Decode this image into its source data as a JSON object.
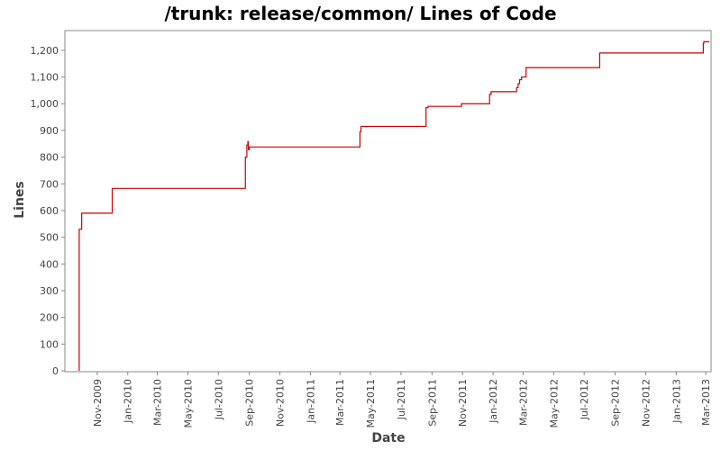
{
  "chart_data": {
    "type": "line",
    "title": "/trunk: release/common/ Lines of Code",
    "xlabel": "Date",
    "ylabel": "Lines",
    "ylim": [
      0,
      1240
    ],
    "xlim": [
      "2009-09-01",
      "2013-03-08"
    ],
    "y_ticks": [
      {
        "value": 0,
        "label": "0"
      },
      {
        "value": 100,
        "label": "100"
      },
      {
        "value": 200,
        "label": "200"
      },
      {
        "value": 300,
        "label": "300"
      },
      {
        "value": 400,
        "label": "400"
      },
      {
        "value": 500,
        "label": "500"
      },
      {
        "value": 600,
        "label": "600"
      },
      {
        "value": 700,
        "label": "700"
      },
      {
        "value": 800,
        "label": "800"
      },
      {
        "value": 900,
        "label": "900"
      },
      {
        "value": 1000,
        "label": "1,000"
      },
      {
        "value": 1100,
        "label": "1,100"
      },
      {
        "value": 1200,
        "label": "1,200"
      }
    ],
    "x_ticks": [
      {
        "date": "2009-11-01",
        "label": "Nov-2009"
      },
      {
        "date": "2010-01-01",
        "label": "Jan-2010"
      },
      {
        "date": "2010-03-01",
        "label": "Mar-2010"
      },
      {
        "date": "2010-05-01",
        "label": "May-2010"
      },
      {
        "date": "2010-07-01",
        "label": "Jul-2010"
      },
      {
        "date": "2010-09-01",
        "label": "Sep-2010"
      },
      {
        "date": "2010-11-01",
        "label": "Nov-2010"
      },
      {
        "date": "2011-01-01",
        "label": "Jan-2011"
      },
      {
        "date": "2011-03-01",
        "label": "Mar-2011"
      },
      {
        "date": "2011-05-01",
        "label": "May-2011"
      },
      {
        "date": "2011-07-01",
        "label": "Jul-2011"
      },
      {
        "date": "2011-09-01",
        "label": "Sep-2011"
      },
      {
        "date": "2011-11-01",
        "label": "Nov-2011"
      },
      {
        "date": "2012-01-01",
        "label": "Jan-2012"
      },
      {
        "date": "2012-03-01",
        "label": "Mar-2012"
      },
      {
        "date": "2012-05-01",
        "label": "May-2012"
      },
      {
        "date": "2012-07-01",
        "label": "Jul-2012"
      },
      {
        "date": "2012-09-01",
        "label": "Sep-2012"
      },
      {
        "date": "2012-11-01",
        "label": "Nov-2012"
      },
      {
        "date": "2013-01-01",
        "label": "Jan-2013"
      },
      {
        "date": "2013-03-01",
        "label": "Mar-2013"
      }
    ],
    "grid": false,
    "series": [
      {
        "color": "#cc0000",
        "step": true,
        "points": [
          {
            "x": "2009-09-26",
            "y": 0
          },
          {
            "x": "2009-09-26",
            "y": 530
          },
          {
            "x": "2009-10-01",
            "y": 590
          },
          {
            "x": "2009-12-01",
            "y": 683
          },
          {
            "x": "2010-08-24",
            "y": 800
          },
          {
            "x": "2010-08-27",
            "y": 845
          },
          {
            "x": "2010-08-29",
            "y": 858
          },
          {
            "x": "2010-08-30",
            "y": 828
          },
          {
            "x": "2010-09-01",
            "y": 838
          },
          {
            "x": "2011-04-10",
            "y": 895
          },
          {
            "x": "2011-04-12",
            "y": 915
          },
          {
            "x": "2011-08-20",
            "y": 985
          },
          {
            "x": "2011-08-24",
            "y": 990
          },
          {
            "x": "2011-10-30",
            "y": 1000
          },
          {
            "x": "2011-12-25",
            "y": 1035
          },
          {
            "x": "2011-12-28",
            "y": 1045
          },
          {
            "x": "2012-02-17",
            "y": 1060
          },
          {
            "x": "2012-02-20",
            "y": 1075
          },
          {
            "x": "2012-02-23",
            "y": 1090
          },
          {
            "x": "2012-02-27",
            "y": 1100
          },
          {
            "x": "2012-03-07",
            "y": 1135
          },
          {
            "x": "2012-08-01",
            "y": 1190
          },
          {
            "x": "2013-02-24",
            "y": 1225
          },
          {
            "x": "2013-02-25",
            "y": 1232
          }
        ]
      }
    ]
  }
}
